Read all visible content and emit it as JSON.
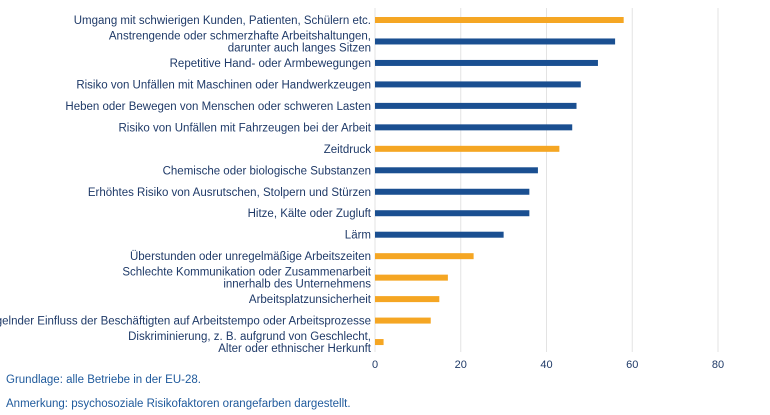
{
  "chart_data": {
    "type": "bar",
    "orientation": "horizontal",
    "xlim": [
      0,
      80
    ],
    "xticks": [
      0,
      20,
      40,
      60,
      80
    ],
    "grid": true,
    "categories": [
      [
        "Umgang mit schwierigen Kunden, Patienten, Schülern etc."
      ],
      [
        "Anstrengende oder schmerzhafte Arbeitshaltungen,",
        "darunter auch langes Sitzen"
      ],
      [
        "Repetitive Hand- oder Armbewegungen"
      ],
      [
        "Risiko von Unfällen mit Maschinen oder Handwerkzeugen"
      ],
      [
        "Heben oder Bewegen von Menschen oder schweren Lasten"
      ],
      [
        "Risiko von Unfällen mit Fahrzeugen bei der Arbeit"
      ],
      [
        "Zeitdruck"
      ],
      [
        "Chemische oder biologische Substanzen"
      ],
      [
        "Erhöhtes Risiko von Ausrutschen, Stolpern und Stürzen"
      ],
      [
        "Hitze, Kälte oder Zugluft"
      ],
      [
        "Lärm"
      ],
      [
        "Überstunden oder unregelmäßige Arbeitszeiten"
      ],
      [
        "Schlechte Kommunikation oder Zusammenarbeit",
        "innerhalb des Unternehmens"
      ],
      [
        "Arbeitsplatzunsicherheit"
      ],
      [
        "Mangelnder Einfluss der Beschäftigten auf Arbeitstempo oder Arbeitsprozesse"
      ],
      [
        "Diskriminierung, z. B. aufgrund von Geschlecht,",
        "Alter oder ethnischer Herkunft"
      ]
    ],
    "values": [
      58,
      56,
      52,
      48,
      47,
      46,
      43,
      38,
      36,
      36,
      30,
      23,
      17,
      15,
      13,
      2
    ],
    "bar_types": [
      "psychosocial",
      "physical",
      "physical",
      "physical",
      "physical",
      "physical",
      "psychosocial",
      "physical",
      "physical",
      "physical",
      "physical",
      "psychosocial",
      "psychosocial",
      "psychosocial",
      "psychosocial",
      "psychosocial"
    ],
    "colors": {
      "psychosocial": "#f5a623",
      "physical": "#1a4f91",
      "grid": "#e3e3e3",
      "text": "#1f3a68"
    }
  },
  "notes": {
    "basis": "Grundlage: alle Betriebe in der EU-28.",
    "remark": "Anmerkung: psychosoziale Risikofaktoren orangefarben dargestellt."
  }
}
